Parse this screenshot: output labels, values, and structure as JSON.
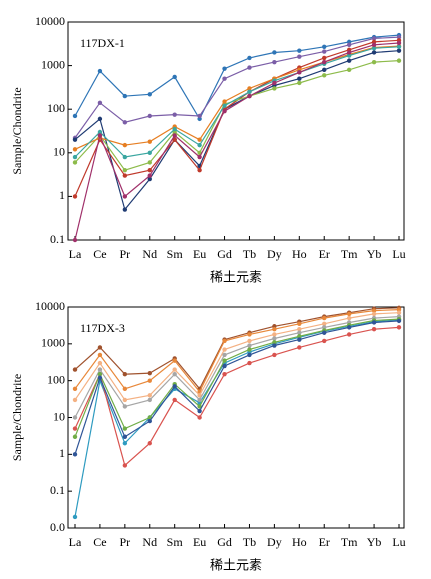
{
  "chart_data": [
    {
      "type": "line",
      "title": "117DX-1",
      "ylabel": "Sample/Chondrite",
      "xlabel": "稀土元素",
      "log_scale": true,
      "categories": [
        "La",
        "Ce",
        "Pr",
        "Nd",
        "Sm",
        "Eu",
        "Gd",
        "Tb",
        "Dy",
        "Ho",
        "Er",
        "Tm",
        "Yb",
        "Lu"
      ],
      "ylim": [
        0.1,
        10000
      ],
      "yticks": [
        0.1,
        1,
        10,
        100,
        1000,
        10000
      ],
      "series": [
        {
          "color": "#2e75b6",
          "values": [
            70,
            750,
            200,
            220,
            550,
            60,
            850,
            1500,
            2000,
            2200,
            2700,
            3500,
            4500,
            5000
          ]
        },
        {
          "color": "#7b5ea7",
          "values": [
            22,
            140,
            50,
            70,
            75,
            70,
            500,
            900,
            1200,
            1600,
            2100,
            3000,
            4200,
            4500
          ]
        },
        {
          "color": "#1f3b73",
          "values": [
            20,
            60,
            0.5,
            2.5,
            20,
            5,
            100,
            200,
            350,
            500,
            800,
            1300,
            2000,
            2200
          ]
        },
        {
          "color": "#c0392b",
          "values": [
            1,
            20,
            3,
            4,
            20,
            4,
            100,
            250,
            500,
            900,
            1500,
            2300,
            3500,
            3800
          ]
        },
        {
          "color": "#8dbb4a",
          "values": [
            6,
            25,
            4,
            6,
            30,
            10,
            130,
            200,
            300,
            400,
            600,
            800,
            1200,
            1300
          ]
        },
        {
          "color": "#e67e22",
          "values": [
            12,
            22,
            15,
            18,
            40,
            20,
            150,
            300,
            500,
            800,
            1200,
            1800,
            2600,
            2800
          ]
        },
        {
          "color": "#3aa6a0",
          "values": [
            8,
            30,
            8,
            10,
            35,
            15,
            120,
            250,
            450,
            700,
            1100,
            1700,
            2500,
            2700
          ]
        },
        {
          "color": "#a0306a",
          "values": [
            0.1,
            25,
            1,
            3,
            25,
            8,
            90,
            200,
            400,
            700,
            1200,
            2000,
            3000,
            3300
          ]
        }
      ]
    },
    {
      "type": "line",
      "title": "117DX-3",
      "ylabel": "Sample/Chondrite",
      "xlabel": "稀土元素",
      "log_scale": true,
      "categories": [
        "La",
        "Ce",
        "Pr",
        "Nd",
        "Sm",
        "Eu",
        "Gd",
        "Tb",
        "Dy",
        "Ho",
        "Er",
        "Tm",
        "Yb",
        "Lu"
      ],
      "ylim": [
        0.01,
        10000
      ],
      "yticks": [
        {
          "value": 0.01,
          "label": "0.0"
        },
        0.1,
        1,
        10,
        100,
        1000,
        10000
      ],
      "series": [
        {
          "color": "#a0522d",
          "values": [
            200,
            800,
            150,
            160,
            400,
            60,
            1300,
            2000,
            3000,
            4000,
            5500,
            7000,
            9000,
            9500
          ]
        },
        {
          "color": "#e8883a",
          "values": [
            60,
            500,
            60,
            100,
            350,
            50,
            1200,
            1800,
            2500,
            3500,
            5000,
            6500,
            8000,
            8500
          ]
        },
        {
          "color": "#f4b183",
          "values": [
            30,
            300,
            30,
            40,
            200,
            40,
            700,
            1200,
            1800,
            2500,
            3500,
            5000,
            6500,
            7000
          ]
        },
        {
          "color": "#2e9bc0",
          "values": [
            0.02,
            100,
            2,
            10,
            60,
            25,
            300,
            600,
            1000,
            1500,
            2200,
            3000,
            4000,
            4500
          ]
        },
        {
          "color": "#d9534f",
          "values": [
            5,
            150,
            0.5,
            2,
            30,
            10,
            150,
            300,
            500,
            800,
            1200,
            1800,
            2500,
            2800
          ]
        },
        {
          "color": "#a6a6a6",
          "values": [
            10,
            200,
            20,
            30,
            150,
            30,
            500,
            900,
            1400,
            2000,
            2800,
            3800,
            5000,
            5500
          ]
        },
        {
          "color": "#70ad47",
          "values": [
            3,
            150,
            5,
            10,
            80,
            20,
            350,
            700,
            1100,
            1600,
            2300,
            3200,
            4300,
            4700
          ]
        },
        {
          "color": "#2f5597",
          "values": [
            1,
            120,
            3,
            8,
            70,
            15,
            250,
            500,
            900,
            1300,
            2000,
            2800,
            3800,
            4200
          ]
        }
      ]
    }
  ]
}
